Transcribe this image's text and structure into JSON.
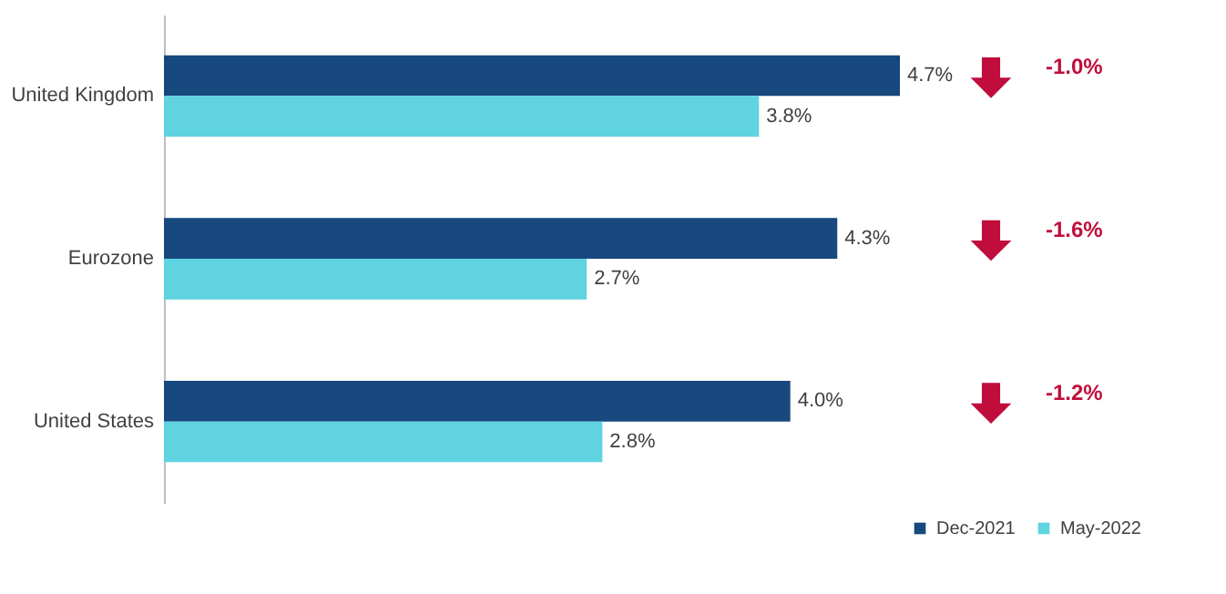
{
  "chart_data": {
    "type": "bar",
    "orientation": "horizontal",
    "categories": [
      "United Kingdom",
      "Eurozone",
      "United States"
    ],
    "series": [
      {
        "name": "Dec-2021",
        "color": "#17487e",
        "values": [
          4.7,
          4.3,
          4.0
        ],
        "value_labels": [
          "4.7%",
          "4.3%",
          "4.0%"
        ]
      },
      {
        "name": "May-2022",
        "color": "#5fd3e0",
        "values": [
          3.8,
          2.7,
          2.8
        ],
        "value_labels": [
          "3.8%",
          "2.7%",
          "2.8%"
        ]
      }
    ],
    "legend": "bottom right",
    "annotations": [
      "-1.0%",
      "-1.6%",
      "-1.2%"
    ]
  }
}
